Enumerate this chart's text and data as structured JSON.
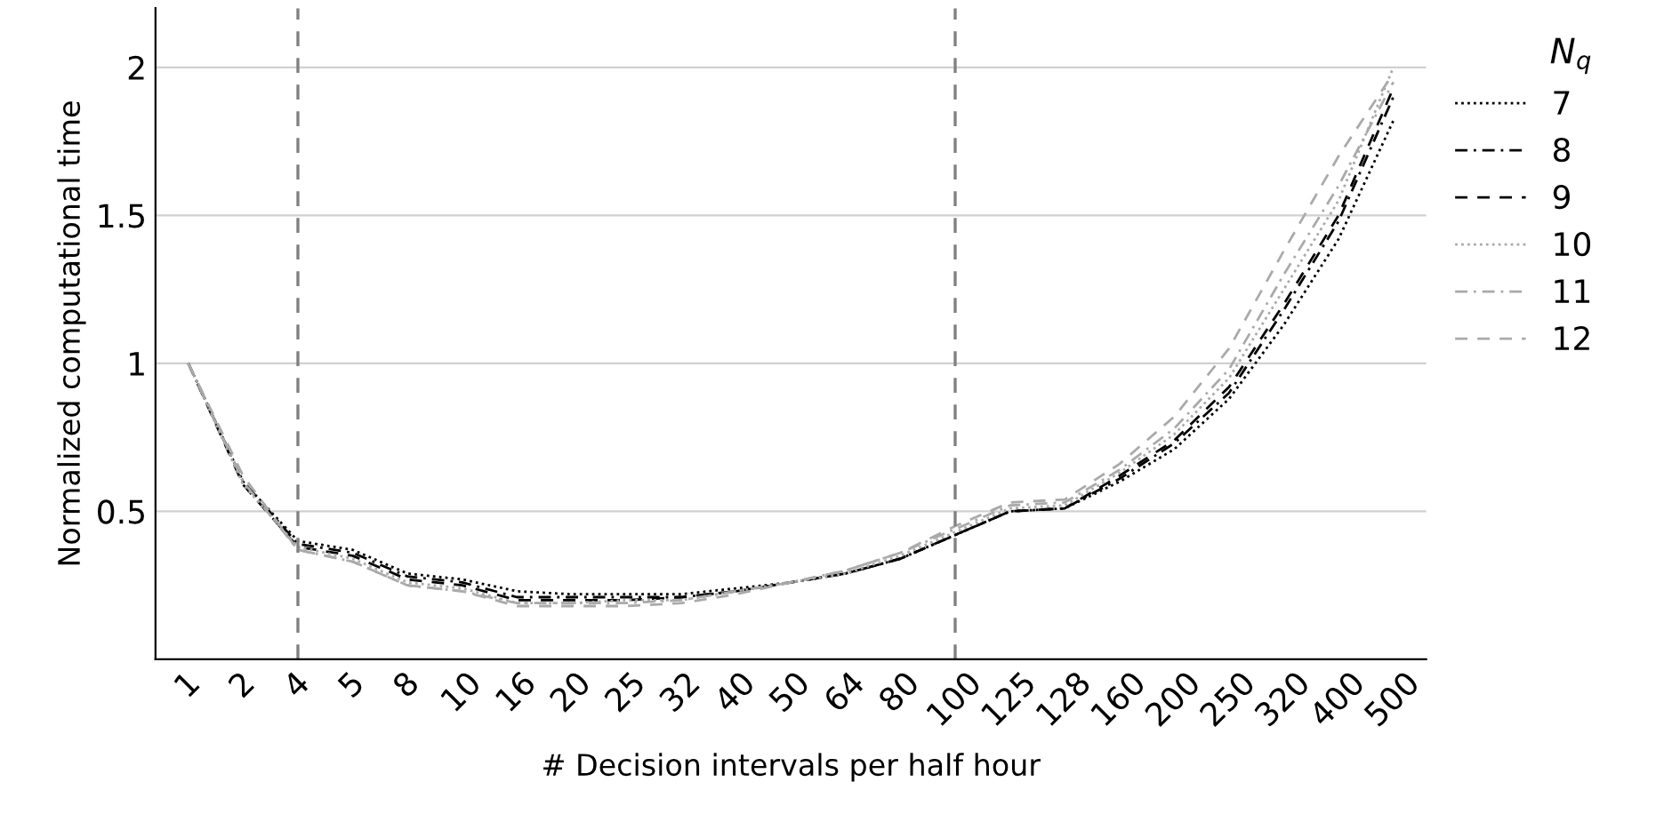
{
  "chart_data": {
    "type": "line",
    "xlabel": "# Decision intervals per half hour",
    "ylabel": "Normalized computational time",
    "legend_title": "N$_{q}$",
    "categories": [
      "1",
      "2",
      "4",
      "5",
      "8",
      "10",
      "16",
      "20",
      "25",
      "32",
      "40",
      "50",
      "64",
      "80",
      "100",
      "125",
      "128",
      "160",
      "200",
      "250",
      "320",
      "400",
      "500"
    ],
    "series": [
      {
        "name": "7",
        "color": "#000000",
        "line_style": "dotted",
        "values": [
          1.0,
          0.6,
          0.4,
          0.37,
          0.29,
          0.27,
          0.23,
          0.22,
          0.22,
          0.22,
          0.24,
          0.26,
          0.29,
          0.34,
          0.42,
          0.5,
          0.51,
          0.6,
          0.71,
          0.88,
          1.13,
          1.42,
          1.82
        ]
      },
      {
        "name": "8",
        "color": "#000000",
        "line_style": "dashdot",
        "values": [
          1.0,
          0.6,
          0.39,
          0.36,
          0.28,
          0.26,
          0.21,
          0.21,
          0.21,
          0.21,
          0.23,
          0.26,
          0.29,
          0.34,
          0.42,
          0.5,
          0.51,
          0.61,
          0.73,
          0.9,
          1.18,
          1.48,
          1.9
        ]
      },
      {
        "name": "9",
        "color": "#000000",
        "line_style": "dashed",
        "values": [
          1.0,
          0.59,
          0.38,
          0.35,
          0.27,
          0.25,
          0.2,
          0.2,
          0.2,
          0.21,
          0.23,
          0.26,
          0.29,
          0.34,
          0.42,
          0.5,
          0.51,
          0.62,
          0.74,
          0.92,
          1.2,
          1.5,
          1.93
        ]
      },
      {
        "name": "10",
        "color": "#aaaaaa",
        "line_style": "dotted",
        "values": [
          1.0,
          0.59,
          0.38,
          0.34,
          0.26,
          0.24,
          0.19,
          0.19,
          0.2,
          0.2,
          0.23,
          0.26,
          0.29,
          0.35,
          0.43,
          0.51,
          0.52,
          0.63,
          0.76,
          0.95,
          1.25,
          1.55,
          2.0
        ]
      },
      {
        "name": "11",
        "color": "#aaaaaa",
        "line_style": "dashdot",
        "values": [
          1.0,
          0.6,
          0.37,
          0.33,
          0.25,
          0.23,
          0.19,
          0.19,
          0.19,
          0.2,
          0.23,
          0.26,
          0.3,
          0.36,
          0.44,
          0.52,
          0.53,
          0.64,
          0.78,
          0.98,
          1.3,
          1.6,
          1.95
        ]
      },
      {
        "name": "12",
        "color": "#aaaaaa",
        "line_style": "dashed",
        "values": [
          1.0,
          0.62,
          0.37,
          0.33,
          0.25,
          0.23,
          0.18,
          0.18,
          0.18,
          0.19,
          0.22,
          0.26,
          0.3,
          0.36,
          0.45,
          0.53,
          0.54,
          0.66,
          0.82,
          1.05,
          1.38,
          1.7,
          1.98
        ]
      }
    ],
    "ylim": [
      0,
      2.2
    ],
    "yticks": [
      0.5,
      1,
      1.5,
      2
    ],
    "grid": "y",
    "legend": "right",
    "ref_lines": [
      {
        "axis": "x",
        "value": "4",
        "color": "#808080",
        "line_style": "dashed"
      },
      {
        "axis": "x",
        "value": "100",
        "color": "#808080",
        "line_style": "dashed"
      }
    ]
  }
}
